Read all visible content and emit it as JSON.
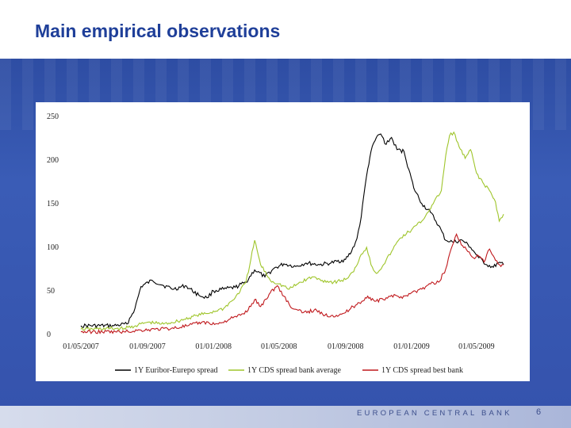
{
  "slide": {
    "title": "Main empirical observations",
    "footer": "EUROPEAN CENTRAL BANK",
    "page_number": "6"
  },
  "colors": {
    "title": "#1f3f99",
    "band": "#3553ad",
    "series_black": "#000000",
    "series_green": "#9fc52b",
    "series_red": "#c0191d"
  },
  "chart_data": {
    "type": "line",
    "xlabel": "",
    "ylabel": "",
    "ylim": [
      0,
      250
    ],
    "yticks": [
      0,
      50,
      100,
      150,
      200,
      250
    ],
    "ytick_labels": [
      "0",
      "50",
      "100",
      "150",
      "200",
      "250"
    ],
    "xlim": [
      "2007-05-01",
      "2009-06-20"
    ],
    "xticks": [
      "2007-05-01",
      "2007-09-01",
      "2008-01-01",
      "2008-05-01",
      "2008-09-01",
      "2009-01-01",
      "2009-05-01"
    ],
    "xtick_labels": [
      "01/05/2007",
      "01/09/2007",
      "01/01/2008",
      "01/05/2008",
      "01/09/2008",
      "01/01/2009",
      "01/05/2009"
    ],
    "grid": false,
    "legend_position": "bottom",
    "series": [
      {
        "name": "1Y Euribor-Eurepo spread",
        "color": "#000000",
        "points": [
          [
            "2007-05-01",
            10
          ],
          [
            "2007-07-01",
            10
          ],
          [
            "2007-07-25",
            12
          ],
          [
            "2007-08-09",
            30
          ],
          [
            "2007-08-20",
            55
          ],
          [
            "2007-09-10",
            62
          ],
          [
            "2007-10-01",
            56
          ],
          [
            "2007-10-20",
            52
          ],
          [
            "2007-11-10",
            56
          ],
          [
            "2007-12-05",
            45
          ],
          [
            "2007-12-20",
            42
          ],
          [
            "2008-01-01",
            50
          ],
          [
            "2008-01-20",
            52
          ],
          [
            "2008-02-10",
            54
          ],
          [
            "2008-03-01",
            60
          ],
          [
            "2008-03-17",
            74
          ],
          [
            "2008-04-05",
            66
          ],
          [
            "2008-04-20",
            75
          ],
          [
            "2008-05-10",
            81
          ],
          [
            "2008-06-01",
            78
          ],
          [
            "2008-06-20",
            82
          ],
          [
            "2008-07-15",
            80
          ],
          [
            "2008-08-05",
            82
          ],
          [
            "2008-09-01",
            86
          ],
          [
            "2008-09-12",
            95
          ],
          [
            "2008-09-22",
            110
          ],
          [
            "2008-09-30",
            135
          ],
          [
            "2008-10-07",
            170
          ],
          [
            "2008-10-12",
            190
          ],
          [
            "2008-10-18",
            210
          ],
          [
            "2008-10-28",
            226
          ],
          [
            "2008-11-05",
            230
          ],
          [
            "2008-11-15",
            218
          ],
          [
            "2008-11-25",
            226
          ],
          [
            "2008-12-05",
            212
          ],
          [
            "2008-12-18",
            210
          ],
          [
            "2009-01-05",
            168
          ],
          [
            "2009-01-20",
            150
          ],
          [
            "2009-02-05",
            140
          ],
          [
            "2009-02-20",
            125
          ],
          [
            "2009-03-05",
            108
          ],
          [
            "2009-03-20",
            106
          ],
          [
            "2009-04-05",
            108
          ],
          [
            "2009-04-20",
            100
          ],
          [
            "2009-05-05",
            88
          ],
          [
            "2009-05-20",
            80
          ],
          [
            "2009-06-01",
            77
          ],
          [
            "2009-06-10",
            82
          ],
          [
            "2009-06-20",
            80
          ]
        ]
      },
      {
        "name": "1Y CDS spread bank average",
        "color": "#9fc52b",
        "points": [
          [
            "2007-05-01",
            6
          ],
          [
            "2007-07-20",
            7
          ],
          [
            "2007-08-10",
            10
          ],
          [
            "2007-09-01",
            14
          ],
          [
            "2007-10-01",
            12
          ],
          [
            "2007-11-01",
            16
          ],
          [
            "2007-12-01",
            22
          ],
          [
            "2007-12-20",
            24
          ],
          [
            "2008-01-20",
            30
          ],
          [
            "2008-02-10",
            42
          ],
          [
            "2008-03-01",
            60
          ],
          [
            "2008-03-10",
            86
          ],
          [
            "2008-03-17",
            108
          ],
          [
            "2008-03-28",
            80
          ],
          [
            "2008-04-15",
            62
          ],
          [
            "2008-05-01",
            58
          ],
          [
            "2008-05-20",
            52
          ],
          [
            "2008-06-10",
            60
          ],
          [
            "2008-07-01",
            66
          ],
          [
            "2008-07-20",
            62
          ],
          [
            "2008-08-10",
            60
          ],
          [
            "2008-09-01",
            63
          ],
          [
            "2008-09-16",
            72
          ],
          [
            "2008-09-30",
            92
          ],
          [
            "2008-10-10",
            100
          ],
          [
            "2008-10-18",
            80
          ],
          [
            "2008-10-28",
            70
          ],
          [
            "2008-11-10",
            80
          ],
          [
            "2008-11-25",
            95
          ],
          [
            "2008-12-10",
            110
          ],
          [
            "2009-01-01",
            120
          ],
          [
            "2009-01-20",
            130
          ],
          [
            "2009-02-10",
            150
          ],
          [
            "2009-02-25",
            165
          ],
          [
            "2009-03-05",
            205
          ],
          [
            "2009-03-12",
            228
          ],
          [
            "2009-03-20",
            232
          ],
          [
            "2009-03-30",
            215
          ],
          [
            "2009-04-10",
            202
          ],
          [
            "2009-04-20",
            212
          ],
          [
            "2009-05-01",
            185
          ],
          [
            "2009-05-15",
            172
          ],
          [
            "2009-05-25",
            165
          ],
          [
            "2009-06-05",
            152
          ],
          [
            "2009-06-12",
            130
          ],
          [
            "2009-06-20",
            138
          ]
        ]
      },
      {
        "name": "1Y CDS spread best bank",
        "color": "#c0191d",
        "points": [
          [
            "2007-05-01",
            3
          ],
          [
            "2007-07-20",
            3
          ],
          [
            "2007-08-20",
            5
          ],
          [
            "2007-09-15",
            6
          ],
          [
            "2007-10-15",
            7
          ],
          [
            "2007-11-15",
            10
          ],
          [
            "2007-12-10",
            14
          ],
          [
            "2008-01-10",
            12
          ],
          [
            "2008-02-01",
            18
          ],
          [
            "2008-02-20",
            22
          ],
          [
            "2008-03-05",
            28
          ],
          [
            "2008-03-17",
            40
          ],
          [
            "2008-03-28",
            32
          ],
          [
            "2008-04-15",
            48
          ],
          [
            "2008-04-28",
            56
          ],
          [
            "2008-05-10",
            44
          ],
          [
            "2008-05-25",
            30
          ],
          [
            "2008-06-15",
            25
          ],
          [
            "2008-07-05",
            28
          ],
          [
            "2008-07-25",
            22
          ],
          [
            "2008-08-15",
            22
          ],
          [
            "2008-09-01",
            25
          ],
          [
            "2008-09-15",
            32
          ],
          [
            "2008-10-01",
            38
          ],
          [
            "2008-10-12",
            44
          ],
          [
            "2008-10-25",
            38
          ],
          [
            "2008-11-10",
            40
          ],
          [
            "2008-11-25",
            45
          ],
          [
            "2008-12-10",
            42
          ],
          [
            "2009-01-01",
            48
          ],
          [
            "2009-01-20",
            52
          ],
          [
            "2009-02-05",
            58
          ],
          [
            "2009-02-20",
            60
          ],
          [
            "2009-03-05",
            75
          ],
          [
            "2009-03-15",
            98
          ],
          [
            "2009-03-25",
            115
          ],
          [
            "2009-04-05",
            102
          ],
          [
            "2009-04-15",
            95
          ],
          [
            "2009-04-25",
            88
          ],
          [
            "2009-05-05",
            90
          ],
          [
            "2009-05-15",
            83
          ],
          [
            "2009-05-25",
            98
          ],
          [
            "2009-06-05",
            85
          ],
          [
            "2009-06-15",
            78
          ],
          [
            "2009-06-20",
            80
          ]
        ]
      }
    ]
  }
}
